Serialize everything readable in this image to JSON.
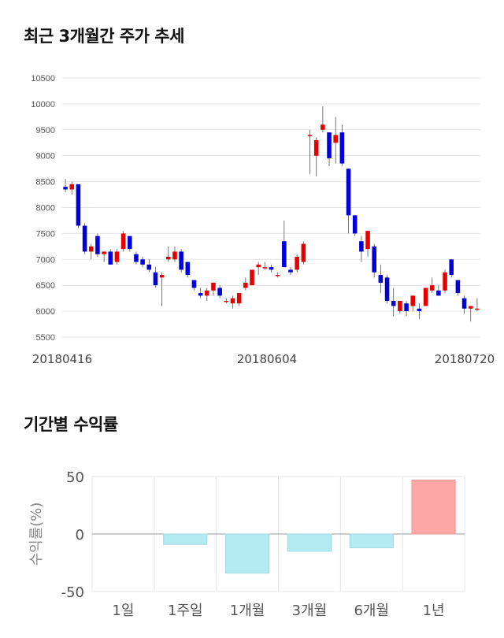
{
  "section1": {
    "title": "최근 3개월간 주가 추세"
  },
  "section2": {
    "title": "기간별 수익률"
  },
  "chart_data": [
    {
      "type": "candlestick",
      "ylim": [
        5500,
        10500
      ],
      "yticks": [
        5500,
        6000,
        6500,
        7000,
        7500,
        8000,
        8500,
        9000,
        9500,
        10000,
        10500
      ],
      "xticks": [
        "20180416",
        "20180604",
        "20180720"
      ],
      "colors": {
        "up": "#e60000",
        "down": "#0000dd",
        "grid": "#e6e6e6"
      },
      "candles": [
        [
          8400,
          8550,
          8300,
          8350
        ],
        [
          8350,
          8500,
          8250,
          8450
        ],
        [
          8450,
          8450,
          7600,
          7650
        ],
        [
          7650,
          7700,
          7100,
          7150
        ],
        [
          7150,
          7300,
          7000,
          7250
        ],
        [
          7450,
          7500,
          7050,
          7100
        ],
        [
          7100,
          7150,
          6950,
          7150
        ],
        [
          7150,
          7200,
          6900,
          6900
        ],
        [
          6950,
          7200,
          6900,
          7150
        ],
        [
          7200,
          7550,
          7150,
          7500
        ],
        [
          7450,
          7450,
          7150,
          7200
        ],
        [
          7100,
          7150,
          6900,
          6950
        ],
        [
          7000,
          7050,
          6850,
          6900
        ],
        [
          6900,
          7000,
          6750,
          6800
        ],
        [
          6750,
          6850,
          6450,
          6500
        ],
        [
          6650,
          6750,
          6100,
          6700
        ],
        [
          7000,
          7250,
          6950,
          7050
        ],
        [
          7000,
          7250,
          6950,
          7150
        ],
        [
          7150,
          7200,
          6750,
          6800
        ],
        [
          6950,
          6950,
          6650,
          6700
        ],
        [
          6600,
          6600,
          6400,
          6450
        ],
        [
          6350,
          6450,
          6250,
          6300
        ],
        [
          6300,
          6450,
          6200,
          6400
        ],
        [
          6400,
          6550,
          6300,
          6550
        ],
        [
          6450,
          6500,
          6250,
          6300
        ],
        [
          6200,
          6250,
          6150,
          6200
        ],
        [
          6150,
          6300,
          6050,
          6250
        ],
        [
          6150,
          6350,
          6100,
          6350
        ],
        [
          6450,
          6650,
          6400,
          6550
        ],
        [
          6500,
          6800,
          6500,
          6800
        ],
        [
          6850,
          6950,
          6700,
          6900
        ],
        [
          6850,
          6950,
          6800,
          6850
        ],
        [
          6850,
          6900,
          6750,
          6800
        ],
        [
          6700,
          6750,
          6650,
          6700
        ],
        [
          7350,
          7750,
          6900,
          6850
        ],
        [
          6800,
          6850,
          6700,
          6750
        ],
        [
          6800,
          7100,
          6750,
          7050
        ],
        [
          6950,
          7350,
          6900,
          7300
        ],
        [
          9400,
          9500,
          8650,
          9400
        ],
        [
          9000,
          9350,
          8600,
          9300
        ],
        [
          9500,
          9950,
          9450,
          9600
        ],
        [
          9450,
          9450,
          8800,
          8950
        ],
        [
          9250,
          9750,
          8850,
          9400
        ],
        [
          9450,
          9600,
          8800,
          8850
        ],
        [
          8750,
          8750,
          7500,
          7850
        ],
        [
          7850,
          7850,
          7450,
          7500
        ],
        [
          7350,
          7450,
          6950,
          7150
        ],
        [
          7200,
          7550,
          7050,
          7550
        ],
        [
          7250,
          7300,
          6650,
          6750
        ],
        [
          6700,
          6900,
          6350,
          6550
        ],
        [
          6650,
          6700,
          6150,
          6200
        ],
        [
          6200,
          6450,
          5900,
          6100
        ],
        [
          6000,
          6200,
          5950,
          6200
        ],
        [
          6150,
          6200,
          5900,
          6000
        ],
        [
          6100,
          6300,
          6000,
          6300
        ],
        [
          6050,
          6150,
          5850,
          6000
        ],
        [
          6100,
          6450,
          6100,
          6450
        ],
        [
          6400,
          6650,
          6350,
          6500
        ],
        [
          6400,
          6500,
          6300,
          6300
        ],
        [
          6400,
          6800,
          6350,
          6750
        ],
        [
          7000,
          7000,
          6650,
          6700
        ],
        [
          6600,
          6600,
          6300,
          6350
        ],
        [
          6250,
          6300,
          5950,
          6050
        ],
        [
          6050,
          6100,
          5800,
          6100
        ],
        [
          6050,
          6250,
          6000,
          6050
        ]
      ]
    },
    {
      "type": "bar",
      "categories": [
        "1일",
        "1주일",
        "1개월",
        "3개월",
        "6개월",
        "1년"
      ],
      "values": [
        0,
        -9,
        -34,
        -15,
        -12,
        47
      ],
      "ylabel": "수익률(%)",
      "ylim": [
        -50,
        50
      ],
      "yticks": [
        50,
        0,
        -50
      ],
      "colors": {
        "negative": "#b3ebf2",
        "negative_edge": "#9fd8e2",
        "positive": "#ffa6a6",
        "positive_edge": "#e89898",
        "grid": "#e6e6e6"
      }
    }
  ]
}
